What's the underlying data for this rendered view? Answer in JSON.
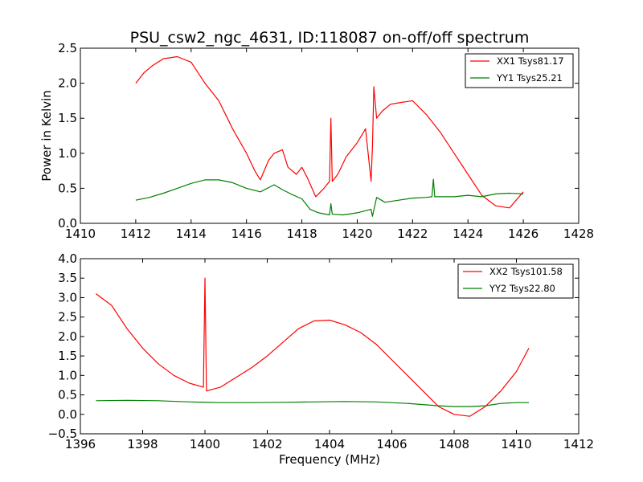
{
  "chart_data": [
    {
      "type": "line",
      "title": "PSU_csw2_ngc_4631, ID:118087 on-off/off spectrum",
      "xlabel": "",
      "ylabel": "Power in Kelvin",
      "xlim": [
        1410,
        1428
      ],
      "ylim": [
        0.0,
        2.5
      ],
      "xticks": [
        "1410",
        "1412",
        "1414",
        "1416",
        "1418",
        "1420",
        "1422",
        "1424",
        "1426",
        "1428"
      ],
      "yticks": [
        "0.0",
        "0.5",
        "1.0",
        "1.5",
        "2.0",
        "2.5"
      ],
      "legend": "top-right",
      "grid": false,
      "series": [
        {
          "name": "XX1 Tsys81.17",
          "color": "#ff0000",
          "x": [
            1412.0,
            1412.3,
            1412.6,
            1413.0,
            1413.5,
            1414.0,
            1414.5,
            1415.0,
            1415.5,
            1416.0,
            1416.3,
            1416.5,
            1416.8,
            1417.0,
            1417.3,
            1417.5,
            1417.8,
            1418.0,
            1418.2,
            1418.5,
            1418.8,
            1419.0,
            1419.05,
            1419.1,
            1419.3,
            1419.6,
            1420.0,
            1420.3,
            1420.5,
            1420.55,
            1420.6,
            1420.7,
            1420.9,
            1421.2,
            1421.5,
            1422.0,
            1422.5,
            1423.0,
            1423.5,
            1424.0,
            1424.5,
            1425.0,
            1425.5,
            1426.0
          ],
          "values": [
            2.0,
            2.15,
            2.25,
            2.35,
            2.38,
            2.3,
            2.0,
            1.75,
            1.35,
            1.0,
            0.75,
            0.62,
            0.9,
            1.0,
            1.05,
            0.8,
            0.7,
            0.8,
            0.65,
            0.38,
            0.5,
            0.6,
            1.5,
            0.6,
            0.7,
            0.95,
            1.15,
            1.35,
            0.6,
            1.1,
            1.95,
            1.5,
            1.6,
            1.7,
            1.72,
            1.75,
            1.55,
            1.3,
            1.0,
            0.7,
            0.4,
            0.25,
            0.22,
            0.45
          ]
        },
        {
          "name": "YY1 Tsys25.21",
          "color": "#008000",
          "x": [
            1412.0,
            1412.5,
            1413.0,
            1413.5,
            1414.0,
            1414.5,
            1415.0,
            1415.5,
            1416.0,
            1416.5,
            1417.0,
            1417.3,
            1417.6,
            1418.0,
            1418.3,
            1418.6,
            1419.0,
            1419.05,
            1419.1,
            1419.5,
            1420.0,
            1420.5,
            1420.55,
            1420.7,
            1421.0,
            1421.5,
            1422.0,
            1422.5,
            1422.7,
            1422.75,
            1422.8,
            1423.0,
            1423.5,
            1424.0,
            1424.5,
            1425.0,
            1425.5,
            1426.0
          ],
          "values": [
            0.33,
            0.37,
            0.43,
            0.5,
            0.57,
            0.62,
            0.62,
            0.58,
            0.5,
            0.45,
            0.55,
            0.48,
            0.42,
            0.35,
            0.2,
            0.15,
            0.12,
            0.28,
            0.13,
            0.12,
            0.15,
            0.2,
            0.1,
            0.37,
            0.3,
            0.33,
            0.36,
            0.37,
            0.38,
            0.63,
            0.38,
            0.38,
            0.38,
            0.4,
            0.38,
            0.42,
            0.43,
            0.42
          ]
        }
      ]
    },
    {
      "type": "line",
      "title": "",
      "xlabel": "Frequency (MHz)",
      "ylabel": "",
      "xlim": [
        1396,
        1412
      ],
      "ylim": [
        -0.5,
        4.0
      ],
      "xticks": [
        "1396",
        "1398",
        "1400",
        "1402",
        "1404",
        "1406",
        "1408",
        "1410",
        "1412"
      ],
      "yticks": [
        "−0.5",
        "0.0",
        "0.5",
        "1.0",
        "1.5",
        "2.0",
        "2.5",
        "3.0",
        "3.5",
        "4.0"
      ],
      "legend": "top-right",
      "grid": false,
      "series": [
        {
          "name": "XX2 Tsys101.58",
          "color": "#ff0000",
          "x": [
            1396.5,
            1397.0,
            1397.5,
            1398.0,
            1398.5,
            1399.0,
            1399.5,
            1399.95,
            1400.0,
            1400.05,
            1400.5,
            1401.0,
            1401.5,
            1402.0,
            1402.5,
            1403.0,
            1403.5,
            1404.0,
            1404.5,
            1405.0,
            1405.5,
            1406.0,
            1406.5,
            1407.0,
            1407.5,
            1408.0,
            1408.5,
            1409.0,
            1409.5,
            1410.0,
            1410.4
          ],
          "values": [
            3.1,
            2.8,
            2.2,
            1.7,
            1.3,
            1.0,
            0.8,
            0.7,
            3.5,
            0.6,
            0.7,
            0.95,
            1.2,
            1.5,
            1.85,
            2.2,
            2.4,
            2.42,
            2.3,
            2.1,
            1.8,
            1.4,
            1.0,
            0.6,
            0.2,
            0.0,
            -0.05,
            0.2,
            0.6,
            1.1,
            1.7
          ]
        },
        {
          "name": "YY2 Tsys22.80",
          "color": "#008000",
          "x": [
            1396.5,
            1397.5,
            1398.5,
            1399.5,
            1400.5,
            1401.5,
            1402.5,
            1403.5,
            1404.5,
            1405.5,
            1406.5,
            1407.5,
            1408.0,
            1408.5,
            1409.0,
            1409.5,
            1410.0,
            1410.4
          ],
          "values": [
            0.35,
            0.36,
            0.35,
            0.32,
            0.3,
            0.3,
            0.31,
            0.32,
            0.33,
            0.32,
            0.28,
            0.22,
            0.2,
            0.2,
            0.22,
            0.28,
            0.3,
            0.3
          ]
        }
      ]
    }
  ]
}
